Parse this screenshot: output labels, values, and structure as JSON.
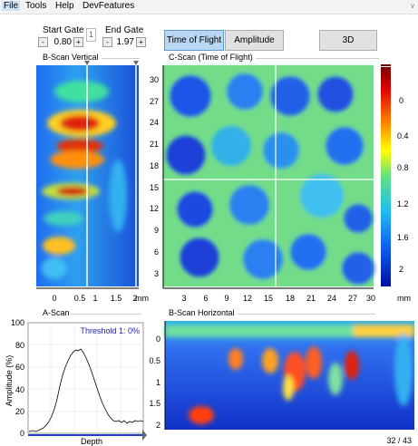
{
  "menu": {
    "items": [
      {
        "label": "File",
        "active": true
      },
      {
        "label": "Tools",
        "active": false
      },
      {
        "label": "Help",
        "active": false
      },
      {
        "label": "DevFeatures",
        "active": false
      }
    ],
    "collapse_icon": "chevron-down-icon"
  },
  "gates": {
    "start_label": "Start Gate",
    "start_value": "0.80",
    "end_label": "End Gate",
    "end_value": "1.97",
    "gate_index": "1",
    "minus": "-",
    "plus": "+"
  },
  "toolbar": {
    "time_of_flight": "Time of Flight",
    "amplitude": "Amplitude",
    "three_d": "3D"
  },
  "sections": {
    "bscan_vertical": "B-Scan Vertical",
    "cscan": "C-Scan (Time of Flight)",
    "ascan": "A-Scan",
    "bscan_horizontal": "B-Scan Horizontal"
  },
  "bscan_vertical_axis": {
    "x_ticks": [
      "0",
      "0.5",
      "1",
      "1.5",
      "2"
    ],
    "unit": "mm"
  },
  "cscan_axis": {
    "x_ticks": [
      "3",
      "6",
      "9",
      "12",
      "15",
      "18",
      "21",
      "24",
      "27",
      "30"
    ],
    "y_ticks": [
      "30",
      "27",
      "24",
      "21",
      "18",
      "15",
      "12",
      "9",
      "6",
      "3"
    ],
    "unit": "mm"
  },
  "colorbar": {
    "ticks": [
      "0",
      "0.4",
      "0.8",
      "1.2",
      "1.6",
      "2"
    ],
    "unit": "mm"
  },
  "ascan_plot": {
    "threshold": "Threshold 1: 0%",
    "ylabel": "Amplitude (%)",
    "xlabel": "Depth",
    "y_ticks": [
      "100",
      "80",
      "60",
      "40",
      "20",
      "0"
    ]
  },
  "bscan_horizontal_axis": {
    "y_ticks": [
      "0",
      "0.5",
      "1",
      "1.5",
      "2"
    ],
    "counter": "32 / 43"
  },
  "colors": {
    "accent": "#b9d6f2",
    "ascan_line": "#000000",
    "threshold_text": "#2020c0"
  }
}
